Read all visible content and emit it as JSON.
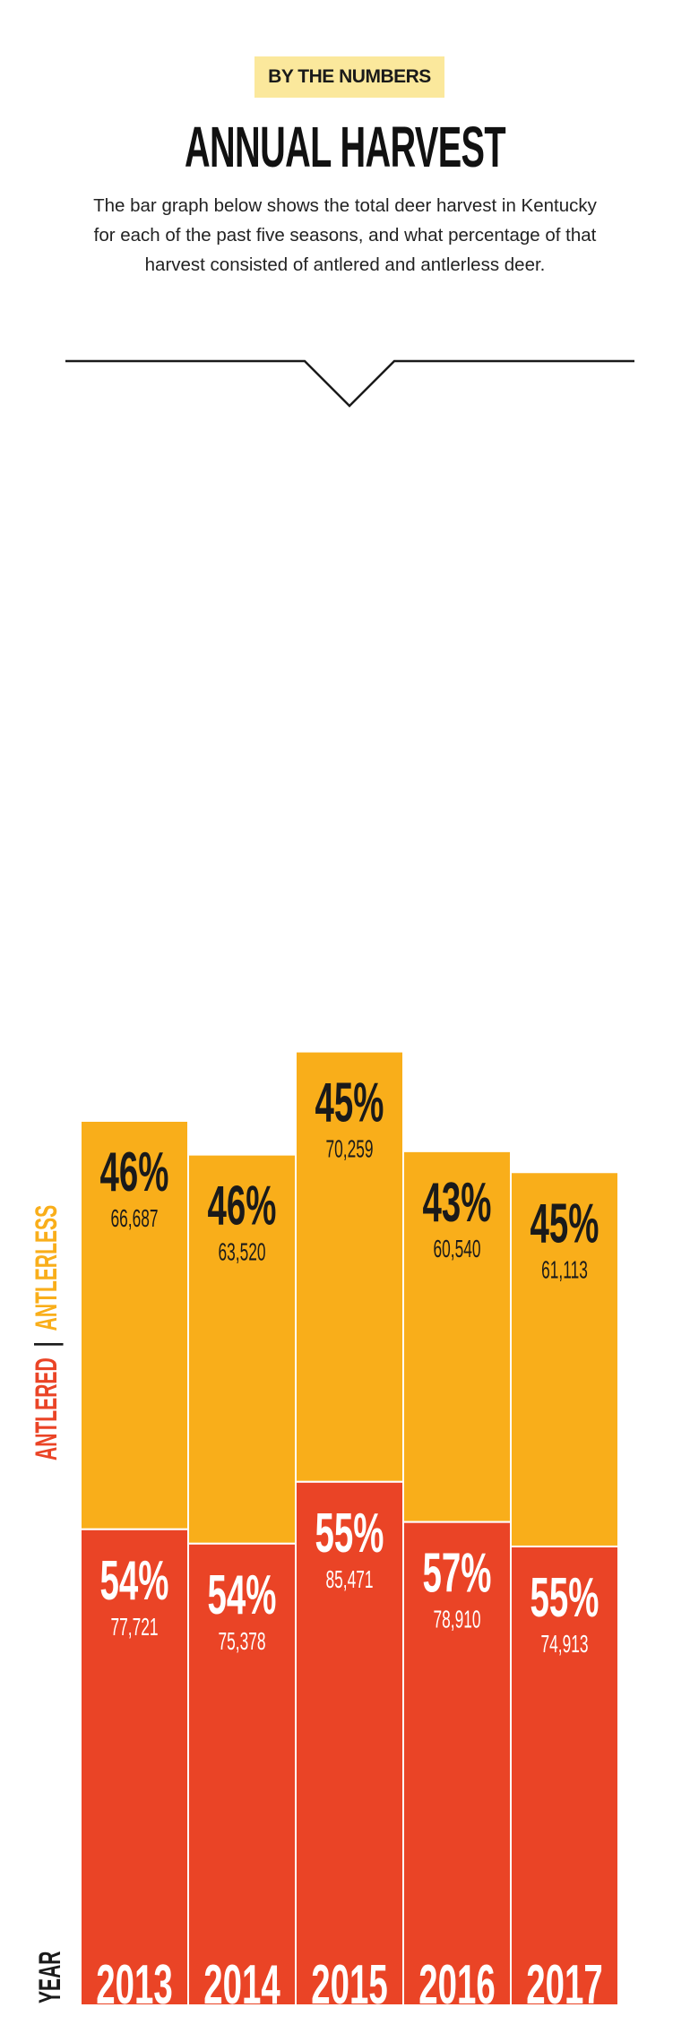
{
  "header": {
    "tag": "BY THE NUMBERS",
    "title": "ANNUAL HARVEST",
    "subtitle": "The bar graph below shows the total deer harvest in Kentucky for each of the past five seasons, and what percentage of that harvest consisted of antlered and antlerless deer."
  },
  "legend": {
    "antlered": "ANTLERED",
    "separator": "|",
    "antlerless": "ANTLERLESS",
    "year": "YEAR"
  },
  "colors": {
    "antlered": "#ea4426",
    "antlerless": "#f9ae1a",
    "highlight": "#fbe89c",
    "text_dark": "#1a1a1a"
  },
  "chart_data": {
    "type": "bar",
    "stacked": true,
    "categories": [
      "2013",
      "2014",
      "2015",
      "2016",
      "2017"
    ],
    "series": [
      {
        "name": "ANTLERED",
        "values": [
          77721,
          75378,
          85471,
          78910,
          74913
        ],
        "percent_labels": [
          "54%",
          "54%",
          "55%",
          "57%",
          "55%"
        ],
        "value_labels": [
          "77,721",
          "75,378",
          "85,471",
          "78,910",
          "74,913"
        ]
      },
      {
        "name": "ANTLERLESS",
        "values": [
          66687,
          63520,
          70259,
          60540,
          61113
        ],
        "percent_labels": [
          "46%",
          "46%",
          "45%",
          "43%",
          "45%"
        ],
        "value_labels": [
          "66,687",
          "63,520",
          "70,259",
          "60,540",
          "61,113"
        ]
      }
    ],
    "xlabel": "YEAR",
    "ylabel": "",
    "grid": false
  }
}
